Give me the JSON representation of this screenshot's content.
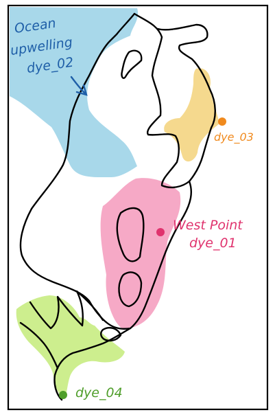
{
  "labels": {
    "ocean_line1": "Ocean",
    "ocean_line2": "upwelling",
    "ocean_line3": "dye_02",
    "west_point_line1": "West Point",
    "west_point_line2": "dye_01",
    "dye03": "dye_03",
    "dye04": "dye_04"
  },
  "colors": {
    "ocean_fill": "#a8d8ea",
    "ocean_text": "#1f5fa8",
    "pink_fill": "#f6a9c6",
    "pink_text": "#e0336e",
    "yellow_fill": "#f5d98e",
    "orange_text": "#f08a1e",
    "green_fill": "#cdee8e",
    "green_text": "#4f9e2a",
    "outline": "#000000"
  }
}
